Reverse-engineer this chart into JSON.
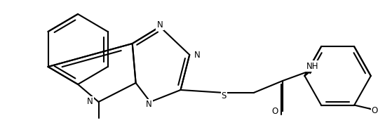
{
  "bg": "#ffffff",
  "lc": "#000000",
  "lw": 1.5,
  "fs": 8.5,
  "fig_w": 5.39,
  "fig_h": 1.85,
  "dpi": 100,
  "xlim": [
    0,
    539
  ],
  "ylim": [
    0,
    185
  ]
}
